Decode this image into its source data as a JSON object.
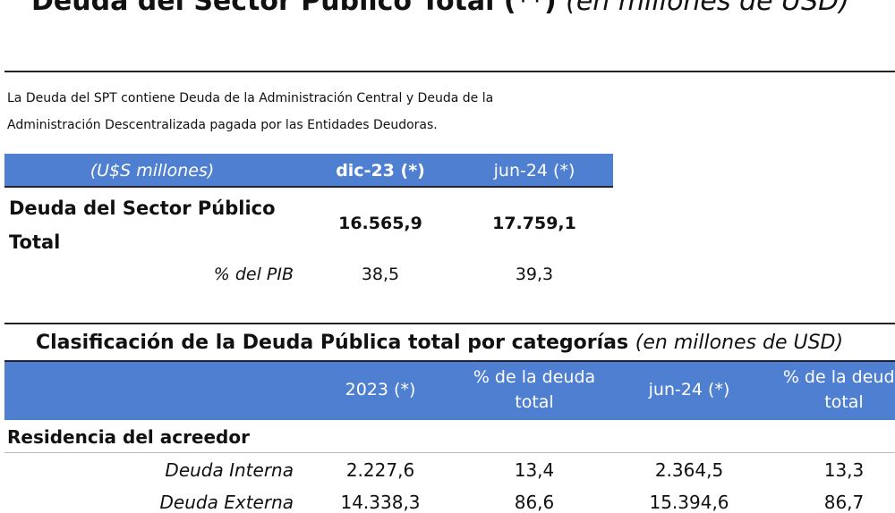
{
  "header": {
    "title": "Deuda del Sector Público Total (**)",
    "subtitle": "(en millones de USD)"
  },
  "note": [
    "La Deuda del SPT contiene Deuda de la Administración Central y Deuda de la",
    "Administración Descentralizada pagada por las Entidades Deudoras."
  ],
  "summary_table": {
    "header": [
      "(U$S millones)",
      "dic-23 (*)",
      "jun-24 (*)"
    ],
    "rows": [
      [
        "Deuda del Sector Público Total",
        "16.565,9",
        "17.759,1"
      ],
      [
        "% del PIB",
        "38,5",
        "39,3"
      ]
    ]
  },
  "category_table": {
    "title": "Clasificación de la Deuda Pública total por categorías",
    "subtitle": "(en millones de USD)",
    "header": [
      "2023 (*)",
      "% de la deuda total",
      "jun-24 (*)",
      "% de la deuda total"
    ],
    "section": "Residencia del acreedor",
    "rows": [
      [
        "Deuda Interna",
        "2.227,6",
        "13,4",
        "2.364,5",
        "13,3"
      ],
      [
        "Deuda Externa",
        "14.338,3",
        "86,6",
        "15.394,6",
        "86,7"
      ]
    ]
  }
}
